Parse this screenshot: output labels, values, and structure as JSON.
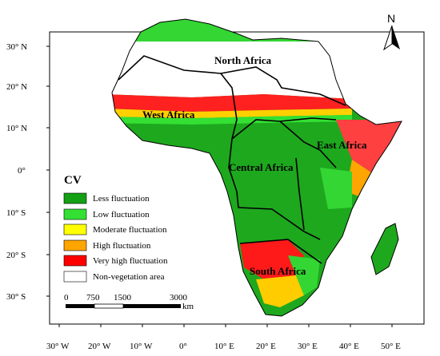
{
  "map": {
    "north_arrow_label": "N",
    "legend": {
      "title": "CV",
      "items": [
        {
          "label": "Less fluctuation",
          "color": "#14a014"
        },
        {
          "label": "Low fluctuation",
          "color": "#33e033"
        },
        {
          "label": "Moderate fluctuation",
          "color": "#ffff00"
        },
        {
          "label": "High fluctuation",
          "color": "#ffa500"
        },
        {
          "label": "Very high fluctuation",
          "color": "#ff0000"
        },
        {
          "label": "Non-vegetation area",
          "color": "#ffffff"
        }
      ]
    },
    "regions": [
      {
        "id": "north",
        "label": "North Africa"
      },
      {
        "id": "west",
        "label": "West Africa"
      },
      {
        "id": "east",
        "label": "East Africa"
      },
      {
        "id": "central",
        "label": "Central Africa"
      },
      {
        "id": "south",
        "label": "South Africa"
      }
    ],
    "lat_ticks": [
      "30° N",
      "20° N",
      "10° N",
      "0°",
      "10° S",
      "20° S",
      "30° S"
    ],
    "lon_ticks": [
      "30° W",
      "20° W",
      "10° W",
      "0°",
      "10° E",
      "20° E",
      "30° E",
      "40° E",
      "50° E"
    ],
    "scale_bar": {
      "ticks": [
        "0",
        "750",
        "1500",
        "3000"
      ],
      "unit": "km"
    }
  }
}
